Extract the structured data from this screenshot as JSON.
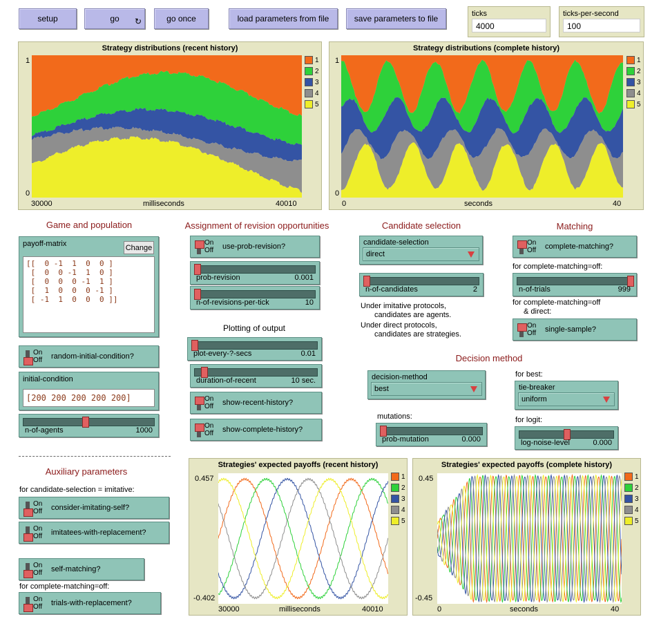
{
  "buttons": {
    "setup": "setup",
    "go": "go",
    "go_once": "go once",
    "load": "load parameters from file",
    "save": "save parameters to file",
    "forever_icon": "↻"
  },
  "monitors": {
    "ticks": {
      "label": "ticks",
      "value": "4000"
    },
    "tps": {
      "label": "ticks-per-second",
      "value": "100"
    }
  },
  "plots": {
    "dist_recent": {
      "title": "Strategy distributions (recent history)",
      "ymax": "1",
      "ymin": "0",
      "xmin": "30000",
      "xmax": "40010",
      "xlabel": "milliseconds"
    },
    "dist_complete": {
      "title": "Strategy distributions (complete history)",
      "ymax": "1",
      "ymin": "0",
      "xmin": "0",
      "xmax": "40",
      "xlabel": "seconds"
    },
    "pay_recent": {
      "title": "Strategies' expected payoffs (recent history)",
      "ymax": "0.457",
      "ymin": "-0.402",
      "xmin": "30000",
      "xmax": "40010",
      "xlabel": "milliseconds"
    },
    "pay_complete": {
      "title": "Strategies' expected payoffs (complete history)",
      "ymax": "0.45",
      "ymin": "-0.45",
      "xmin": "0",
      "xmax": "40",
      "xlabel": "seconds"
    }
  },
  "legend": [
    "1",
    "2",
    "3",
    "4",
    "5"
  ],
  "colors": {
    "s1": "#f26a1b",
    "s2": "#2ed13a",
    "s3": "#3454a4",
    "s4": "#8e8e8e",
    "s5": "#eeee2a"
  },
  "sections": {
    "game": "Game and population",
    "assignment": "Assignment of revision opportunities",
    "candidate": "Candidate selection",
    "matching": "Matching",
    "plotting": "Plotting of output",
    "decision": "Decision method",
    "auxiliary": "Auxiliary parameters"
  },
  "switch_text": {
    "on": "On",
    "off": "Off"
  },
  "payoff_matrix": {
    "label": "payoff-matrix",
    "change": "Change",
    "text": "[[  0 -1  1  0  0 ]\n [  0  0 -1  1  0 ]\n [  0  0  0 -1  1 ]\n [  1  0  0  0 -1 ]\n [ -1  1  0  0  0 ]]"
  },
  "switches": {
    "random_initial": "random-initial-condition?",
    "use_prob_revision": "use-prob-revision?",
    "complete_matching": "complete-matching?",
    "single_sample": "single-sample?",
    "show_recent": "show-recent-history?",
    "show_complete": "show-complete-history?",
    "consider_self": "consider-imitating-self?",
    "imitatees_repl": "imitatees-with-replacement?",
    "self_matching": "self-matching?",
    "trials_repl": "trials-with-replacement?"
  },
  "initial_condition": {
    "label": "initial-condition",
    "value": "[200 200 200 200 200]"
  },
  "sliders": {
    "n_of_agents": {
      "name": "n-of-agents",
      "value": "1000",
      "fraction": 0.47
    },
    "prob_revision": {
      "name": "prob-revision",
      "value": "0.001",
      "fraction": 0.0
    },
    "n_revisions": {
      "name": "n-of-revisions-per-tick",
      "value": "10",
      "fraction": 0.0
    },
    "n_candidates": {
      "name": "n-of-candidates",
      "value": "2",
      "fraction": 0.0
    },
    "n_trials": {
      "name": "n-of-trials",
      "value": "999",
      "fraction": 1.0
    },
    "plot_every": {
      "name": "plot-every-?-secs",
      "value": "0.01",
      "fraction": 0.0
    },
    "duration_recent": {
      "name": "duration-of-recent",
      "value": "10 sec.",
      "fraction": 0.06
    },
    "prob_mutation": {
      "name": "prob-mutation",
      "value": "0.000",
      "fraction": 0.0
    },
    "log_noise": {
      "name": "log-noise-level",
      "value": "0.000",
      "fraction": 0.5
    }
  },
  "choosers": {
    "candidate_selection": {
      "label": "candidate-selection",
      "value": "direct"
    },
    "decision_method": {
      "label": "decision-method",
      "value": "best"
    },
    "tie_breaker": {
      "label": "tie-breaker",
      "value": "uniform"
    }
  },
  "notes": {
    "for_complete_off": "for complete-matching=off:",
    "for_complete_off_direct_1": "for complete-matching=off",
    "for_complete_off_direct_2": "& direct:",
    "imitative_1": "Under imitative protocols,",
    "imitative_2": "candidates are agents.",
    "direct_1": "Under direct protocols,",
    "direct_2": "candidates are strategies.",
    "for_best": "for best:",
    "for_logit": "for logit:",
    "mutations": "mutations:",
    "for_imitative": "for candidate-selection = imitative:",
    "for_complete_off_2": "for complete-matching=off:"
  }
}
